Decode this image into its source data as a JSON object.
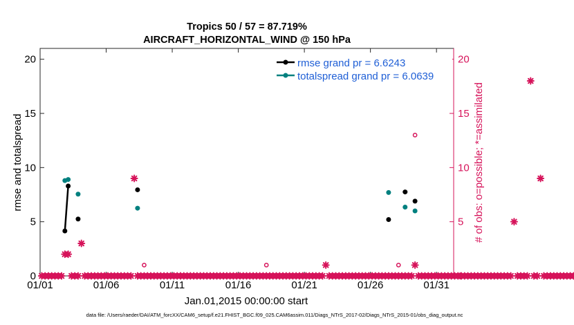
{
  "chart_data": {
    "type": "scatter",
    "title_line1": "Tropics 50 / 57 = 87.719%",
    "title_line2": "AIRCRAFT_HORIZONTAL_WIND @ 150 hPa",
    "xlabel": "Jan.01,2015 00:00:00 start",
    "ylabel_left": "rmse and totalspread",
    "ylabel_right": "# of obs: o=possible; *=assimilated",
    "xlim": [
      1,
      32.3
    ],
    "ylim_left": [
      0,
      21
    ],
    "ylim_right": [
      0,
      21
    ],
    "x_ticks": [
      {
        "value": 1,
        "label": "01/01"
      },
      {
        "value": 6,
        "label": "01/06"
      },
      {
        "value": 11,
        "label": "01/11"
      },
      {
        "value": 16,
        "label": "01/16"
      },
      {
        "value": 21,
        "label": "01/21"
      },
      {
        "value": 26,
        "label": "01/26"
      },
      {
        "value": 31,
        "label": "01/31"
      }
    ],
    "y_ticks_left": [
      0,
      5,
      10,
      15,
      20
    ],
    "y_ticks_right": [
      0,
      5,
      10,
      15,
      20
    ],
    "series": [
      {
        "name": "rmse grand pr = 6.6243",
        "color": "#000000",
        "points": [
          [
            2.875,
            4.15
          ],
          [
            3.125,
            8.3
          ],
          [
            3.875,
            5.25
          ],
          [
            8.375,
            7.95
          ],
          [
            27.375,
            5.2
          ],
          [
            28.625,
            7.75
          ],
          [
            29.375,
            6.9
          ]
        ],
        "line_segments": [
          [
            [
              2.875,
              4.15
            ],
            [
              3.125,
              8.3
            ]
          ]
        ]
      },
      {
        "name": "totalspread grand pr = 6.0639",
        "color": "#00807f",
        "points": [
          [
            2.875,
            8.8
          ],
          [
            3.125,
            8.9
          ],
          [
            3.875,
            7.55
          ],
          [
            8.375,
            6.25
          ],
          [
            27.375,
            7.7
          ],
          [
            28.625,
            6.35
          ],
          [
            29.375,
            6.0
          ]
        ]
      }
    ],
    "obs_assimilated": {
      "color": "#d6135a",
      "start": 1.125,
      "step": 0.25,
      "values": [
        0,
        0,
        0,
        0,
        0,
        0,
        0,
        2,
        2,
        0,
        0,
        0,
        3,
        0,
        0,
        0,
        0,
        0,
        0,
        0,
        0,
        0,
        0,
        0,
        0,
        0,
        0,
        0,
        9,
        0,
        0,
        0,
        0,
        0,
        0,
        0,
        0,
        0,
        0,
        0,
        0,
        0,
        0,
        0,
        0,
        0,
        0,
        0,
        0,
        0,
        0,
        0,
        0,
        0,
        0,
        0,
        0,
        0,
        0,
        0,
        0,
        0,
        0,
        0,
        0,
        0,
        0,
        0,
        0,
        0,
        0,
        0,
        0,
        0,
        0,
        0,
        0,
        0,
        0,
        0,
        0,
        0,
        0,
        0,
        0,
        0,
        1,
        0,
        0,
        0,
        0,
        0,
        0,
        0,
        0,
        0,
        0,
        0,
        0,
        0,
        0,
        0,
        0,
        0,
        0,
        0,
        0,
        0,
        0,
        0,
        0,
        0,
        0,
        1,
        0,
        0,
        0,
        0,
        0,
        0,
        0,
        0,
        0,
        0,
        0,
        0,
        0,
        0,
        0,
        0,
        0,
        0,
        0,
        0,
        0,
        0,
        0,
        0,
        0,
        0,
        0,
        0,
        0,
        5,
        0,
        0,
        0,
        0,
        18,
        0,
        0,
        9,
        0,
        0,
        0,
        0,
        0,
        0,
        0,
        0,
        0,
        0
      ]
    },
    "obs_possible": {
      "color": "#d6135a",
      "points": [
        [
          8.875,
          1
        ],
        [
          18.125,
          1
        ],
        [
          28.125,
          1
        ],
        [
          29.375,
          13
        ]
      ]
    }
  },
  "footer": "data file: /Users/raeder/DAI/ATM_forcXX/CAM6_setup/f.e21.FHIST_BGC.f09_025.CAM6assim.011/Diags_NTrS_2017-02/Diags_NTrS_2015-01/obs_diag_output.nc"
}
